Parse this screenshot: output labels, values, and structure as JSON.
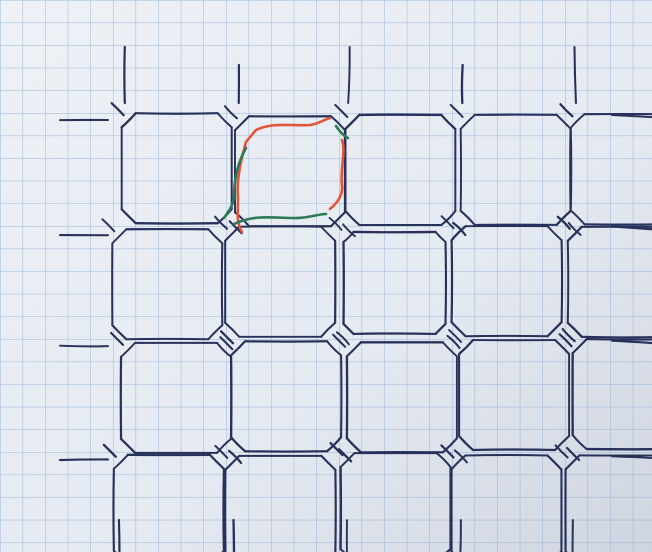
{
  "colors": {
    "paper": "#e9ecf3",
    "paper_shadow": "#c6ccd8",
    "grid": "#8fb0d6",
    "ink": "#27315a",
    "loop_red": "#e2553c",
    "loop_green": "#2c7a55"
  },
  "drawing": {
    "lattice_rows": 4,
    "lattice_cols": 5,
    "highlighted_cell": {
      "row": 1,
      "col": 2
    },
    "highlight_strokes": [
      "red-loop-path",
      "green-loop-path"
    ]
  }
}
